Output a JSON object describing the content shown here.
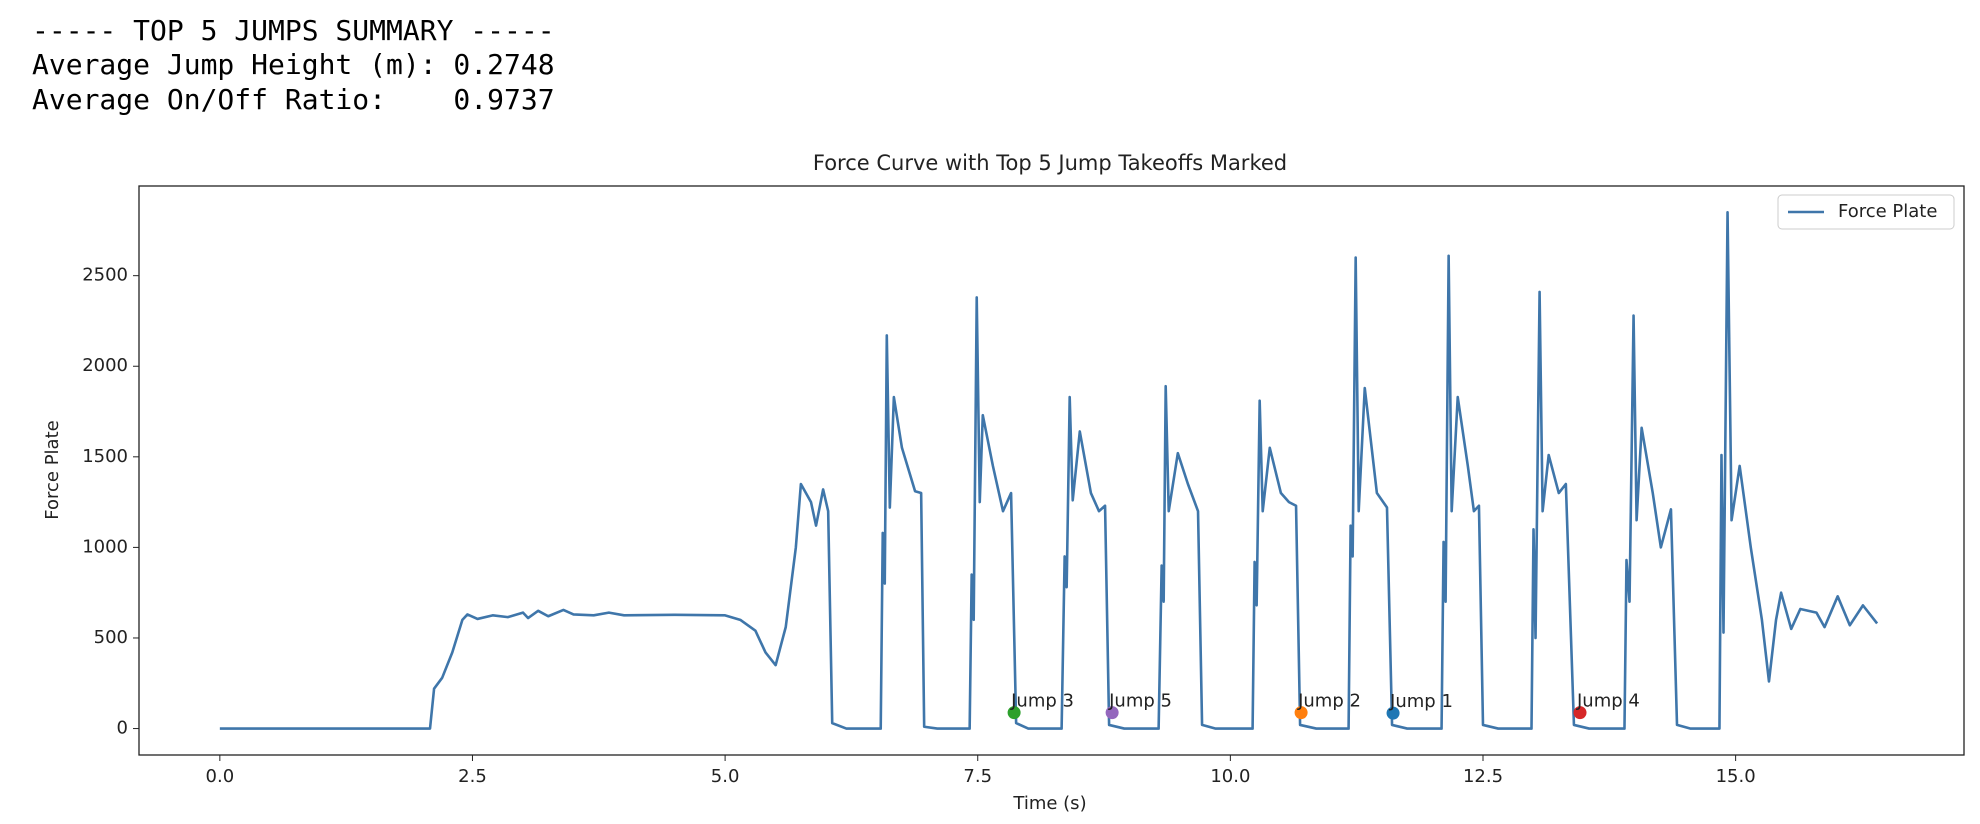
{
  "summary": {
    "lines": [
      "----- TOP 5 JUMPS SUMMARY -----",
      "Average Jump Height (m): 0.2748",
      "Average On/Off Ratio:    0.9737"
    ]
  },
  "chart_data": {
    "type": "line",
    "title": "Force Curve with Top 5 Jump Takeoffs Marked",
    "xlabel": "Time (s)",
    "ylabel": "Force Plate",
    "xlim": [
      -0.8,
      17.26
    ],
    "ylim": [
      -146,
      2995
    ],
    "xticks": [
      {
        "value": 0,
        "label": "0.0"
      },
      2.5,
      {
        "value": 5,
        "label": "5.0"
      },
      7.5,
      {
        "value": 10,
        "label": "10.0"
      },
      12.5,
      {
        "value": 15,
        "label": "15.0"
      }
    ],
    "yticks": [
      0,
      500,
      1000,
      1500,
      2000,
      2500
    ],
    "legend": "upper right",
    "series": [
      {
        "name": "Force Plate",
        "color": "#3f76aa",
        "x": [
          0,
          2.08,
          2.12,
          2.2,
          2.3,
          2.4,
          2.45,
          2.55,
          2.7,
          2.85,
          3.0,
          3.05,
          3.15,
          3.25,
          3.4,
          3.5,
          3.7,
          3.85,
          4.0,
          4.5,
          5.0,
          5.15,
          5.3,
          5.4,
          5.5,
          5.6,
          5.7,
          5.75,
          5.85,
          5.9,
          5.97,
          6.02,
          6.06,
          6.2,
          6.54,
          6.56,
          6.58,
          6.6,
          6.63,
          6.67,
          6.75,
          6.88,
          6.94,
          6.97,
          7.1,
          7.42,
          7.44,
          7.46,
          7.49,
          7.52,
          7.55,
          7.65,
          7.75,
          7.83,
          7.88,
          8.0,
          8.33,
          8.36,
          8.38,
          8.41,
          8.44,
          8.51,
          8.62,
          8.7,
          8.76,
          8.8,
          8.95,
          9.29,
          9.32,
          9.34,
          9.36,
          9.39,
          9.48,
          9.58,
          9.68,
          9.72,
          9.85,
          10.22,
          10.24,
          10.26,
          10.29,
          10.32,
          10.39,
          10.5,
          10.58,
          10.65,
          10.69,
          10.85,
          11.17,
          11.19,
          11.21,
          11.24,
          11.27,
          11.33,
          11.45,
          11.55,
          11.6,
          11.75,
          12.09,
          12.11,
          12.13,
          12.16,
          12.19,
          12.25,
          12.35,
          12.41,
          12.46,
          12.5,
          12.65,
          12.98,
          13.0,
          13.02,
          13.06,
          13.09,
          13.15,
          13.25,
          13.32,
          13.4,
          13.55,
          13.9,
          13.92,
          13.95,
          13.99,
          14.02,
          14.07,
          14.18,
          14.26,
          14.36,
          14.42,
          14.55,
          14.84,
          14.86,
          14.88,
          14.92,
          14.96,
          15.04,
          15.15,
          15.26,
          15.33,
          15.4,
          15.45,
          15.55,
          15.64,
          15.8,
          15.88,
          16.01,
          16.13,
          16.26,
          16.4
        ],
        "values": [
          0,
          0,
          220,
          280,
          420,
          600,
          630,
          605,
          625,
          615,
          640,
          610,
          650,
          620,
          655,
          630,
          625,
          640,
          625,
          628,
          625,
          600,
          540,
          420,
          350,
          560,
          1000,
          1350,
          1250,
          1120,
          1320,
          1200,
          30,
          0,
          0,
          1080,
          800,
          2170,
          1220,
          1830,
          1550,
          1310,
          1300,
          10,
          0,
          0,
          850,
          600,
          2380,
          1250,
          1730,
          1450,
          1200,
          1300,
          30,
          0,
          0,
          950,
          780,
          1830,
          1260,
          1640,
          1300,
          1200,
          1230,
          20,
          0,
          0,
          900,
          700,
          1890,
          1200,
          1520,
          1350,
          1200,
          20,
          0,
          0,
          920,
          680,
          1810,
          1200,
          1550,
          1300,
          1250,
          1230,
          20,
          0,
          0,
          1120,
          950,
          2600,
          1200,
          1880,
          1300,
          1220,
          20,
          0,
          0,
          1030,
          700,
          2610,
          1200,
          1830,
          1450,
          1200,
          1230,
          20,
          0,
          0,
          1100,
          500,
          2410,
          1200,
          1510,
          1300,
          1350,
          20,
          0,
          0,
          930,
          700,
          2280,
          1150,
          1660,
          1300,
          1000,
          1210,
          20,
          0,
          0,
          1510,
          530,
          2850,
          1150,
          1450,
          1000,
          600,
          260,
          600,
          750,
          550,
          660,
          640,
          560,
          730,
          570,
          680,
          580
        ]
      }
    ],
    "markers": [
      {
        "label": "Jump 3",
        "x": 7.86,
        "y": 88,
        "color": "#2ca02c"
      },
      {
        "label": "Jump 5",
        "x": 8.83,
        "y": 88,
        "color": "#9467bd"
      },
      {
        "label": "Jump 2",
        "x": 10.7,
        "y": 88,
        "color": "#ff7f0e"
      },
      {
        "label": "Jump 1",
        "x": 11.61,
        "y": 85,
        "color": "#1f77b4"
      },
      {
        "label": "Jump 4",
        "x": 13.46,
        "y": 88,
        "color": "#d62728"
      }
    ]
  }
}
